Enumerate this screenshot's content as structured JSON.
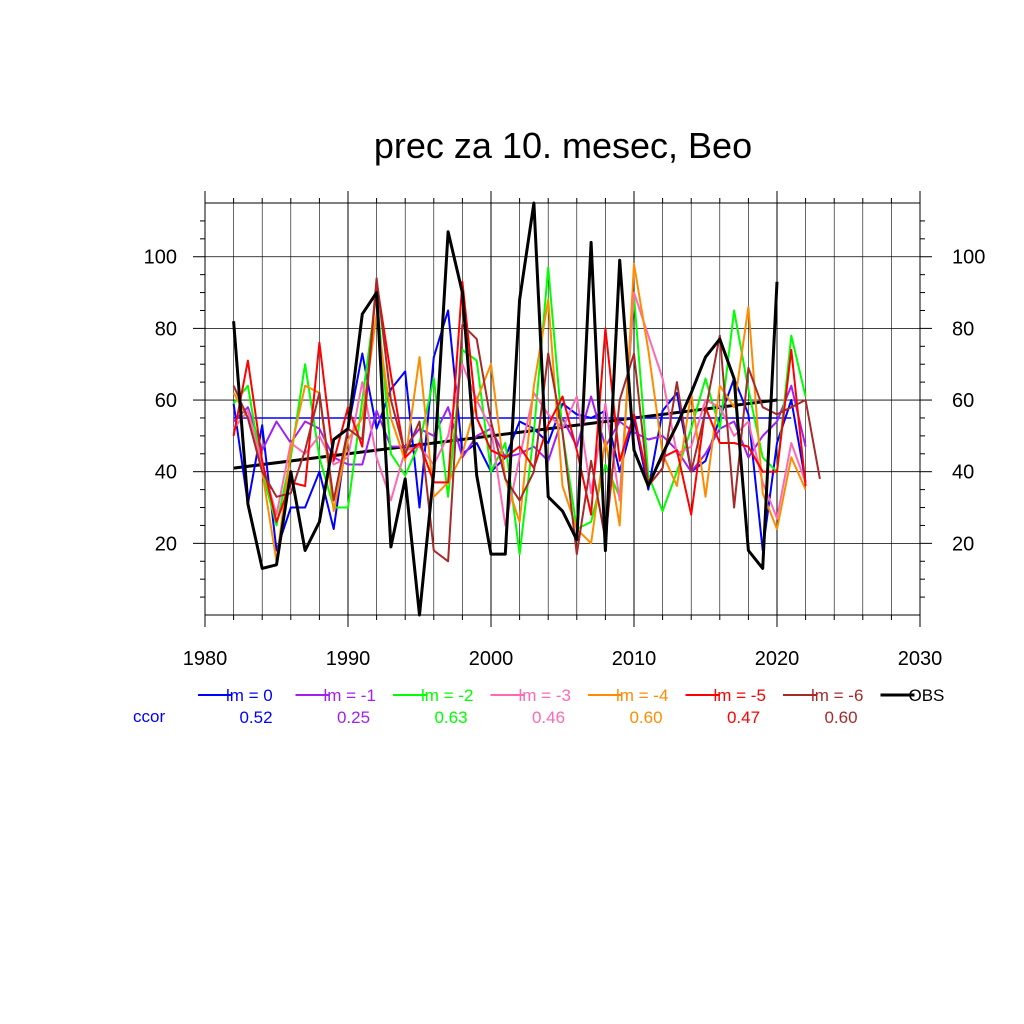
{
  "chart_data": {
    "type": "line",
    "title": "prec za 10. mesec, Beo",
    "xlim": [
      1980,
      2030
    ],
    "ylim": [
      0,
      115
    ],
    "x_ticks": [
      "1980",
      "1990",
      "2000",
      "2010",
      "2020",
      "2030"
    ],
    "y_ticks": [
      "20",
      "40",
      "60",
      "80",
      "100"
    ],
    "grid": true,
    "legend_position": "bottom",
    "ccor_label": "ccor",
    "series": [
      {
        "name": "lm = 0",
        "color": "#0000ff",
        "ccor": "0.52",
        "x_start": 1982,
        "values": [
          59,
          31,
          53,
          18,
          30,
          30,
          40,
          24,
          52,
          73,
          52,
          63,
          68,
          30,
          72,
          85,
          45,
          48,
          40,
          44,
          54,
          52,
          48,
          59,
          56,
          55,
          57,
          40,
          55,
          35,
          57,
          62,
          40,
          43,
          55,
          66,
          56,
          18,
          48,
          60,
          37
        ]
      },
      {
        "name": "lm = -1",
        "color": "#a020f0",
        "ccor": "0.25",
        "x_start": 1982,
        "values": [
          54,
          58,
          46,
          54,
          48,
          54,
          52,
          44,
          42,
          42,
          57,
          47,
          47,
          52,
          50,
          58,
          44,
          50,
          52,
          44,
          45,
          47,
          43,
          55,
          47,
          61,
          47,
          54,
          51,
          49,
          50,
          46,
          40,
          45,
          52,
          54,
          44,
          50,
          54,
          64,
          47
        ]
      },
      {
        "name": "lm = -2",
        "color": "#00ff00",
        "ccor": "0.63",
        "x_start": 1982,
        "values": [
          59,
          64,
          40,
          25,
          44,
          70,
          44,
          30,
          30,
          60,
          90,
          45,
          39,
          48,
          66,
          33,
          74,
          71,
          40,
          48,
          17,
          51,
          97,
          51,
          24,
          26,
          42,
          33,
          89,
          39,
          29,
          40,
          52,
          66,
          52,
          85,
          63,
          44,
          40,
          78,
          61
        ]
      },
      {
        "name": "lm = -3",
        "color": "#ff69b4",
        "ccor": "0.46",
        "x_start": 1982,
        "values": [
          52,
          57,
          42,
          28,
          48,
          45,
          50,
          42,
          44,
          65,
          44,
          32,
          46,
          47,
          42,
          50,
          70,
          60,
          52,
          25,
          44,
          62,
          56,
          52,
          61,
          34,
          59,
          32,
          90,
          78,
          66,
          45,
          47,
          60,
          58,
          50,
          54,
          37,
          27,
          48,
          37
        ]
      },
      {
        "name": "lm = -4",
        "color": "#ff8c00",
        "ccor": "0.60",
        "x_start": 1982,
        "values": [
          62,
          55,
          40,
          15,
          46,
          64,
          62,
          29,
          49,
          55,
          84,
          55,
          43,
          72,
          33,
          37,
          45,
          60,
          70,
          38,
          26,
          64,
          88,
          36,
          24,
          20,
          49,
          25,
          98,
          74,
          45,
          36,
          62,
          33,
          64,
          58,
          86,
          34,
          24,
          44,
          35
        ]
      },
      {
        "name": "lm = -5",
        "color": "#ff0000",
        "ccor": "0.47",
        "x_start": 1982,
        "values": [
          50,
          71,
          43,
          26,
          37,
          36,
          76,
          43,
          58,
          47,
          93,
          67,
          44,
          48,
          37,
          37,
          93,
          55,
          46,
          44,
          47,
          41,
          53,
          61,
          46,
          28,
          80,
          43,
          56,
          37,
          44,
          46,
          28,
          58,
          48,
          48,
          47,
          40,
          40,
          74,
          36
        ]
      },
      {
        "name": "lm = -6",
        "color": "#a52a2a",
        "ccor": "0.60",
        "x_start": 1982,
        "values": [
          64,
          55,
          40,
          33,
          34,
          46,
          62,
          32,
          52,
          49,
          94,
          60,
          45,
          54,
          18,
          15,
          81,
          77,
          54,
          38,
          32,
          40,
          73,
          51,
          17,
          43,
          21,
          60,
          73,
          36,
          41,
          65,
          40,
          57,
          78,
          30,
          69,
          58,
          56,
          58,
          60,
          38
        ]
      },
      {
        "name": "OBS",
        "color": "#000000",
        "ccor": "",
        "x_start": 1982,
        "values": [
          82,
          31,
          13,
          14,
          40,
          18,
          26,
          49,
          52,
          84,
          90,
          19,
          38,
          0,
          40,
          107,
          90,
          39,
          17,
          17,
          88,
          115,
          33,
          29,
          21,
          104,
          18,
          99,
          46,
          36,
          45,
          53,
          62,
          72,
          77,
          66,
          18,
          13,
          93
        ]
      }
    ],
    "trend_lines": [
      {
        "name": "OBS trend",
        "color": "#000000",
        "x": [
          1982,
          2020
        ],
        "y": [
          41,
          60
        ]
      },
      {
        "name": "lm = 0 trend",
        "color": "#0000ff",
        "x": [
          1982,
          2021
        ],
        "y": [
          55,
          55
        ]
      }
    ]
  }
}
